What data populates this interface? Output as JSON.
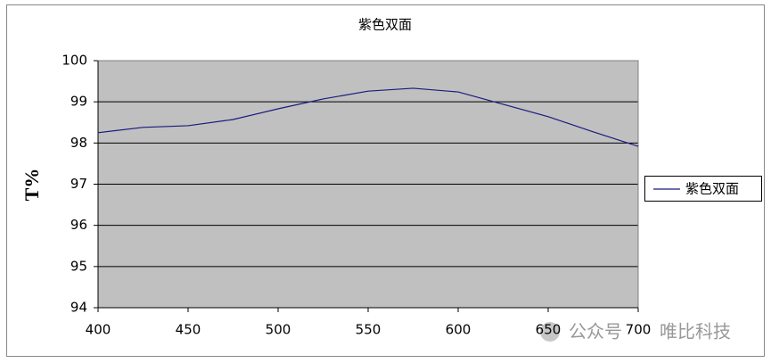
{
  "chart_data": {
    "type": "line",
    "title": "紫色双面",
    "y_label": "T%",
    "x": [
      400,
      425,
      450,
      475,
      500,
      525,
      550,
      575,
      600,
      625,
      650,
      675,
      700
    ],
    "series": [
      {
        "name": "紫色双面",
        "color": "#1a1a80",
        "values": [
          98.25,
          98.38,
          98.42,
          98.57,
          98.83,
          99.07,
          99.26,
          99.33,
          99.24,
          98.94,
          98.64,
          98.27,
          97.92
        ]
      }
    ],
    "xlim": [
      400,
      700
    ],
    "xticks": [
      400,
      450,
      500,
      550,
      600,
      650,
      700
    ],
    "ylim": [
      94,
      100
    ],
    "yticks": [
      94,
      95,
      96,
      97,
      98,
      99,
      100
    ],
    "grid": true,
    "plot_background": "#c0c0c0",
    "legend": "right"
  },
  "watermark": [
    "公众号",
    "唯比科技"
  ]
}
